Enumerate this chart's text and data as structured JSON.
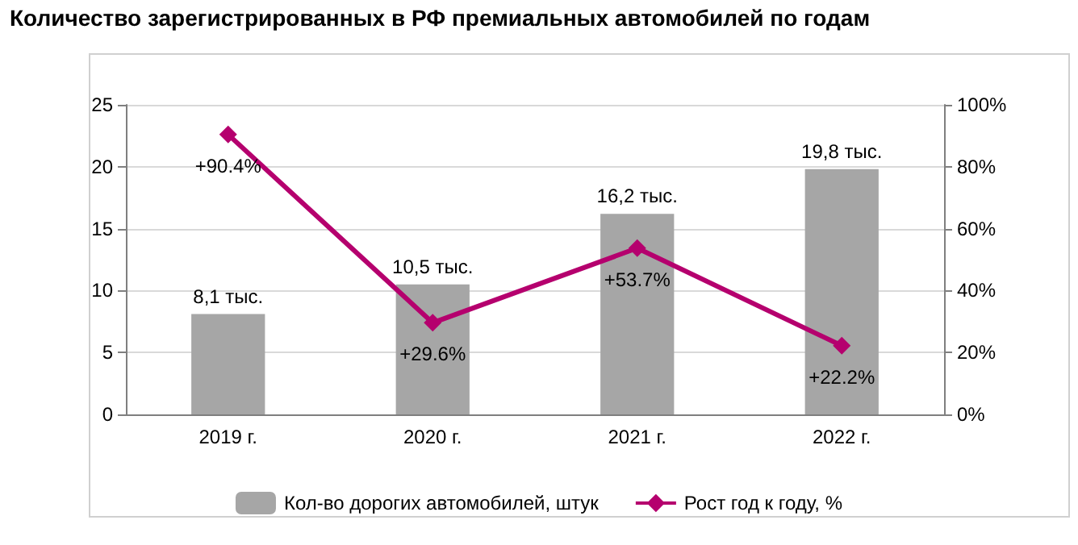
{
  "chart_data": {
    "type": "bar",
    "title": "Количество зарегистрированных в РФ премиальных автомобилей по годам",
    "categories": [
      "2019 г.",
      "2020 г.",
      "2021 г.",
      "2022 г."
    ],
    "series": [
      {
        "name": "Кол-во дорогих автомобилей, штук",
        "color": "#a6a6a6",
        "values": [
          8.1,
          10.5,
          16.2,
          19.8
        ],
        "value_labels": [
          "8,1 тыс.",
          "10,5 тыс.",
          "16,2 тыс.",
          "19,8 тыс."
        ]
      },
      {
        "name": "Рост год к году, %",
        "type": "line",
        "axis": "y2",
        "color": "#b5006e",
        "marker": "diamond",
        "values": [
          90.4,
          29.6,
          53.7,
          22.2
        ],
        "value_labels": [
          "+90.4%",
          "+29.6%",
          "+53.7%",
          "+22.2%"
        ]
      }
    ],
    "ylim": [
      0,
      25
    ],
    "yticks": [
      0,
      5,
      10,
      15,
      20,
      25
    ],
    "y2lim": [
      0,
      100
    ],
    "y2ticks": [
      {
        "value": 0,
        "label": "0%"
      },
      {
        "value": 20,
        "label": "20%"
      },
      {
        "value": 40,
        "label": "40%"
      },
      {
        "value": 60,
        "label": "60%"
      },
      {
        "value": 80,
        "label": "80%"
      },
      {
        "value": 100,
        "label": "100%"
      }
    ],
    "grid": "y",
    "legend": "bottom"
  }
}
